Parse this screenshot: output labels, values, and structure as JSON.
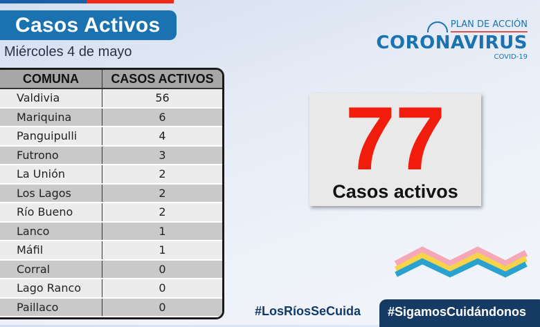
{
  "header": {
    "title": "Casos Activos",
    "date": "Miércoles 4 de mayo"
  },
  "logo": {
    "plan": "PLAN DE ACCIÓN",
    "name": "CORONAVIRUS",
    "sub": "COVID-19"
  },
  "table": {
    "headers": [
      "COMUNA",
      "CASOS ACTIVOS"
    ],
    "rows": [
      [
        "Valdivia",
        "56"
      ],
      [
        "Mariquina",
        "6"
      ],
      [
        "Panguipulli",
        "4"
      ],
      [
        "Futrono",
        "3"
      ],
      [
        "La Unión",
        "2"
      ],
      [
        "Los Lagos",
        "2"
      ],
      [
        "Río Bueno",
        "2"
      ],
      [
        "Lanco",
        "1"
      ],
      [
        "Máfil",
        "1"
      ],
      [
        "Corral",
        "0"
      ],
      [
        "Lago Ranco",
        "0"
      ],
      [
        "Paillaco",
        "0"
      ]
    ]
  },
  "total": {
    "value": "77",
    "label": "Casos activos"
  },
  "hashtags": [
    "#LosRíosSeCuida",
    "#SigamosCuidándonos"
  ],
  "colors": {
    "blue": "#1a72b0",
    "red": "#f11c0c",
    "navy": "#153a63"
  }
}
